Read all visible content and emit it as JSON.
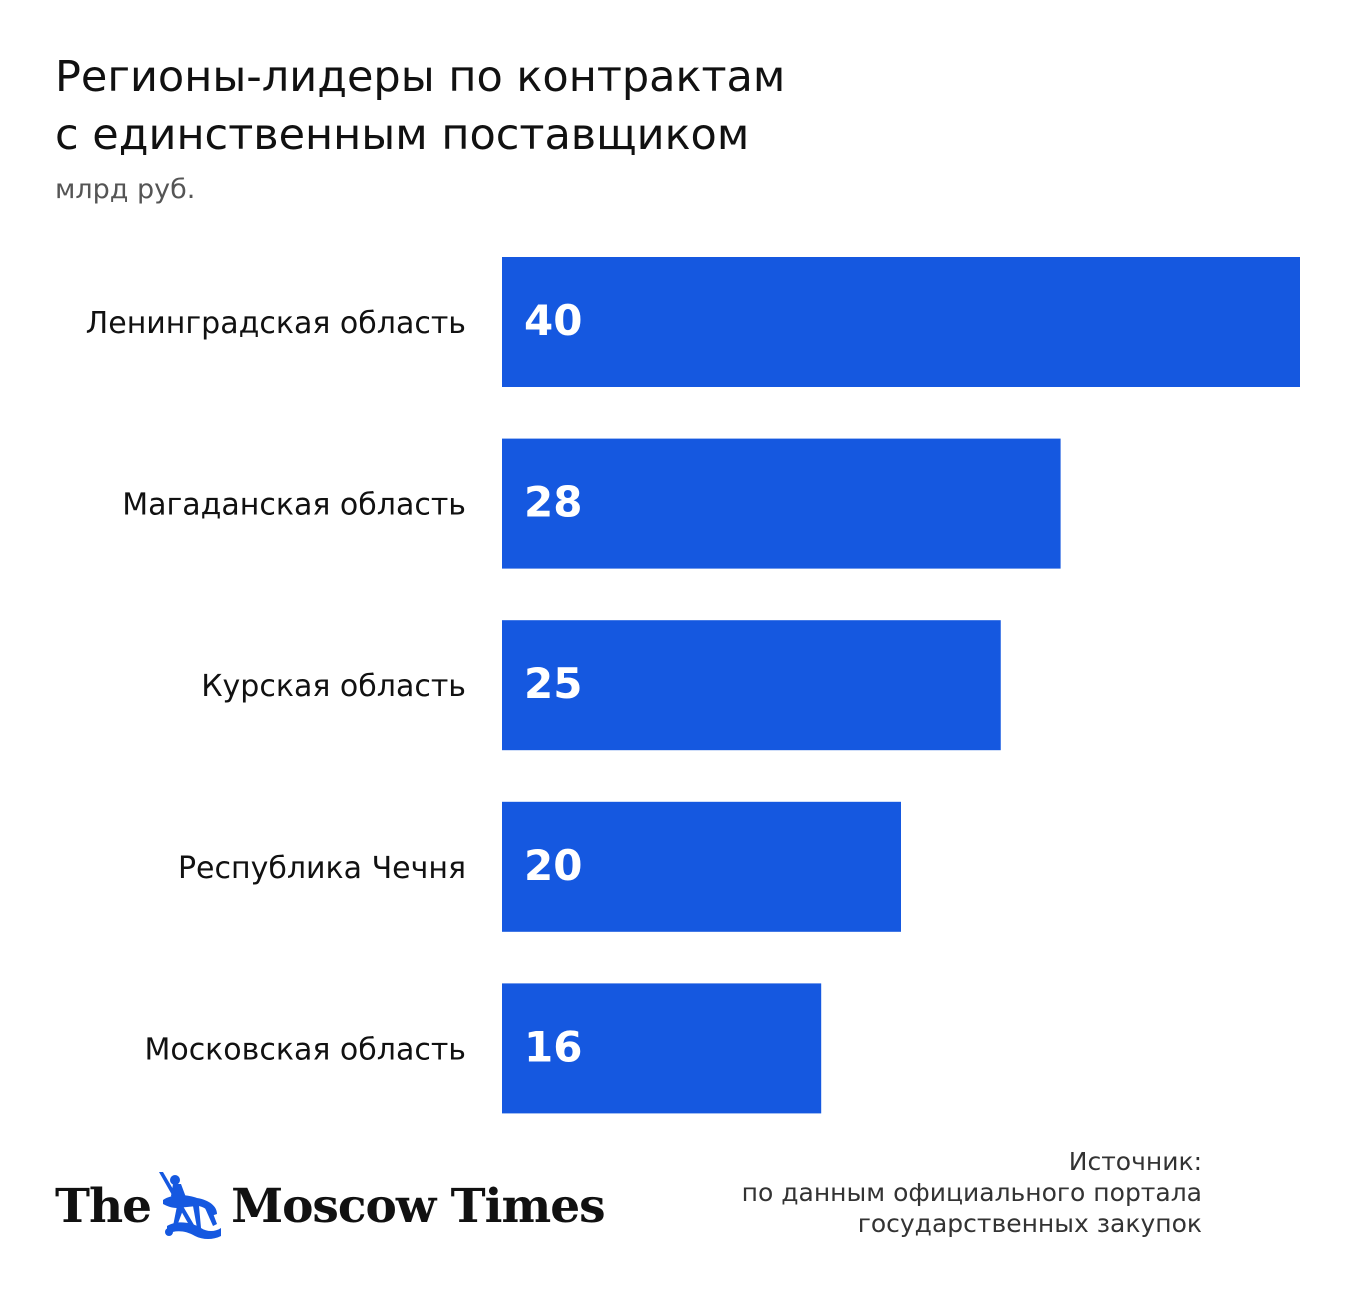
{
  "chart_data": {
    "type": "bar",
    "orientation": "horizontal",
    "title": "Регионы-лидеры по контрактам с единственным поставщиком",
    "title_lines": [
      "Регионы-лидеры по контрактам",
      "с единственным поставщиком"
    ],
    "subtitle": "млрд руб.",
    "categories": [
      "Ленинградская область",
      "Магаданская область",
      "Курская область",
      "Республика Чечня",
      "Московская область"
    ],
    "values": [
      40,
      28,
      25,
      20,
      16
    ],
    "data_labels": [
      "40",
      "28",
      "25",
      "20",
      "16"
    ],
    "xlim": [
      0,
      40
    ],
    "grid": false,
    "legend": "none",
    "bar_color": "#1558E0"
  },
  "source": {
    "heading": "Источник:",
    "lines": [
      "по данным официального портала",
      "государственных закупок"
    ]
  },
  "logo": {
    "left_text": "The",
    "right_text": "Moscow Times",
    "emblem": "st-george-emblem-icon",
    "emblem_color": "#1558E0"
  }
}
